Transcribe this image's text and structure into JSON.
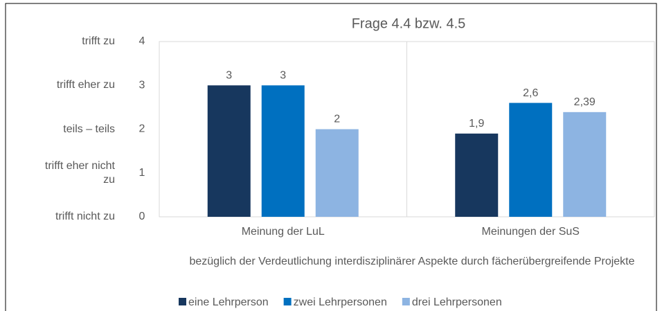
{
  "chart_data": {
    "type": "bar",
    "title": "Frage 4.4 bzw. 4.5",
    "categories": [
      "Meinung der LuL",
      "Meinungen der SuS"
    ],
    "x_label": "bezüglich der Verdeutlichung interdisziplinärer Aspekte durch fächerübergreifende Projekte",
    "series": [
      {
        "name": "eine Lehrperson",
        "color": "#17375e",
        "values": [
          3,
          1.9
        ],
        "value_labels": [
          "3",
          "1,9"
        ]
      },
      {
        "name": "zwei Lehrpersonen",
        "color": "#0070c0",
        "values": [
          3,
          2.6
        ],
        "value_labels": [
          "3",
          "2,6"
        ]
      },
      {
        "name": "drei Lehrpersonen",
        "color": "#8db4e2",
        "values": [
          2,
          2.39
        ],
        "value_labels": [
          "2",
          "2,39"
        ]
      }
    ],
    "ylim": [
      0,
      4
    ],
    "yticks": [
      0,
      1,
      2,
      3,
      4
    ],
    "ytick_texts": [
      "trifft nicht zu",
      "trifft eher nicht zu",
      "teils – teils",
      "trifft eher zu",
      "trifft zu"
    ],
    "grid": false,
    "legend": "bottom"
  }
}
